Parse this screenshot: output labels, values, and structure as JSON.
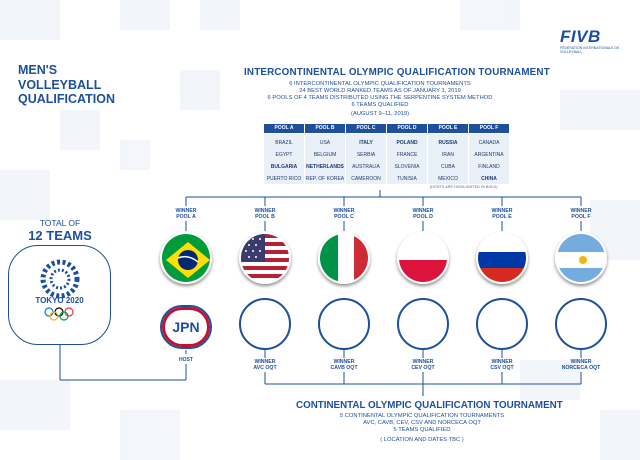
{
  "brand": {
    "fivb": "FIVB",
    "fivb_subtitle": "FÉDÉRATION INTERNATIONALE DE VOLLEYBALL"
  },
  "title": "MEN'S\nVOLLEYBALL\nQUALIFICATION",
  "total_label": "TOTAL OF",
  "total_count": "12 TEAMS",
  "tokyo_label": "TOKYO 2020",
  "ioqt": {
    "heading": "INTERCONTINENTAL OLYMPIC QUALIFICATION TOURNAMENT",
    "lines": [
      "6 INTERCONTINENTAL OLYMPIC QUALIFICATION TOURNAMENTS",
      "24 BEST WORLD RANKED TEAMS AS OF JANUARY 1, 2019",
      "6 POOLS OF 4 TEAMS DISTRIBUTED USING THE SERPENTINE SYSTEM METHOD",
      "6 TEAMS QUALIFIED"
    ],
    "dates": "(AUGUST 9–11, 2019)",
    "hosts_note": "(HOSTS ARE HIGHLIGHTED IN BOLD)"
  },
  "pools": [
    {
      "name": "POOL A",
      "teams": [
        {
          "n": "BRAZIL",
          "b": false
        },
        {
          "n": "EGYPT",
          "b": false
        },
        {
          "n": "BULGARIA",
          "b": true
        },
        {
          "n": "PUERTO RICO",
          "b": false
        }
      ]
    },
    {
      "name": "POOL B",
      "teams": [
        {
          "n": "USA",
          "b": false
        },
        {
          "n": "BELGIUM",
          "b": false
        },
        {
          "n": "NETHERLANDS",
          "b": true
        },
        {
          "n": "REP. OF KOREA",
          "b": false
        }
      ]
    },
    {
      "name": "POOL C",
      "teams": [
        {
          "n": "ITALY",
          "b": true
        },
        {
          "n": "SERBIA",
          "b": false
        },
        {
          "n": "AUSTRALIA",
          "b": false
        },
        {
          "n": "CAMEROON",
          "b": false
        }
      ]
    },
    {
      "name": "POOL D",
      "teams": [
        {
          "n": "POLAND",
          "b": true
        },
        {
          "n": "FRANCE",
          "b": false
        },
        {
          "n": "SLOVENIA",
          "b": false
        },
        {
          "n": "TUNISIA",
          "b": false
        }
      ]
    },
    {
      "name": "POOL E",
      "teams": [
        {
          "n": "RUSSIA",
          "b": true
        },
        {
          "n": "IRAN",
          "b": false
        },
        {
          "n": "CUBA",
          "b": false
        },
        {
          "n": "MEXICO",
          "b": false
        }
      ]
    },
    {
      "name": "POOL F",
      "teams": [
        {
          "n": "CANADA",
          "b": false
        },
        {
          "n": "ARGENTINA",
          "b": false
        },
        {
          "n": "FINLAND",
          "b": false
        },
        {
          "n": "CHINA",
          "b": true
        }
      ]
    }
  ],
  "winners_top": [
    "WINNER\nPOOL A",
    "WINNER\nPOOL B",
    "WINNER\nPOOL C",
    "WINNER\nPOOL D",
    "WINNER\nPOOL E",
    "WINNER\nPOOL F"
  ],
  "flags": [
    "brazil-flag",
    "usa-flag",
    "italy-flag",
    "poland-flag",
    "russia-flag",
    "argentina-flag"
  ],
  "host_code": "JPN",
  "host_label": "HOST",
  "winners_bottom": [
    "WINNER\nAVC OQT",
    "WINNER\nCAVB OQT",
    "WINNER\nCEV OQT",
    "WINNER\nCSV OQT",
    "WINNER\nNORCECA OQT"
  ],
  "coqt": {
    "heading": "CONTINENTAL OLYMPIC QUALIFICATION TOURNAMENT",
    "lines": [
      "5 CONTINENTAL OLYMPIC QUALIFICATION TOURNAMENTS",
      "AVC, CAVB, CEV, CSV AND NORCECA OQT",
      "5 TEAMS QUALIFIED"
    ],
    "dates": "( LOCATION AND DATES TBC )"
  },
  "colors": {
    "primary": "#1d4f9c",
    "pool_bg": "#e9f0f8",
    "accent_red": "#c8102e"
  }
}
